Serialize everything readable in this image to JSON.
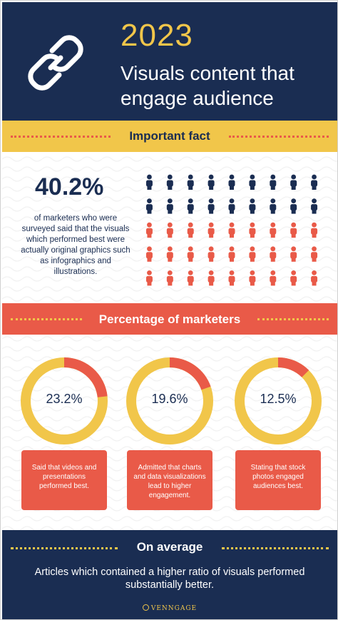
{
  "header": {
    "year": "2023",
    "headline": "Visuals content that engage audience",
    "icon": "link-icon"
  },
  "fact_section": {
    "title": "Important fact",
    "percentage": "40.2%",
    "description": "of marketers who were surveyed said that the visuals which performed best were actually original graphics such as infographics and illustrations.",
    "people_icon": "person-icon",
    "people_rows": 5,
    "people_cols": 9,
    "navy_rows": 2
  },
  "marketers_section": {
    "title": "Percentage of marketers",
    "items": [
      {
        "value": "23.2%",
        "fraction": 0.232,
        "caption": "Said that videos and presentations performed best."
      },
      {
        "value": "19.6%",
        "fraction": 0.196,
        "caption": "Admitted that charts and data visualizations lead to higher engagement."
      },
      {
        "value": "12.5%",
        "fraction": 0.125,
        "caption": "Stating that stock photos engaged audiences best."
      }
    ]
  },
  "footer": {
    "title": "On average",
    "text": "Articles which contained a higher ratio of visuals performed substantially better.",
    "brand": "VENNGAGE"
  },
  "colors": {
    "navy": "#1a2d52",
    "yellow": "#f1c64a",
    "red": "#e95a48",
    "white": "#ffffff"
  }
}
